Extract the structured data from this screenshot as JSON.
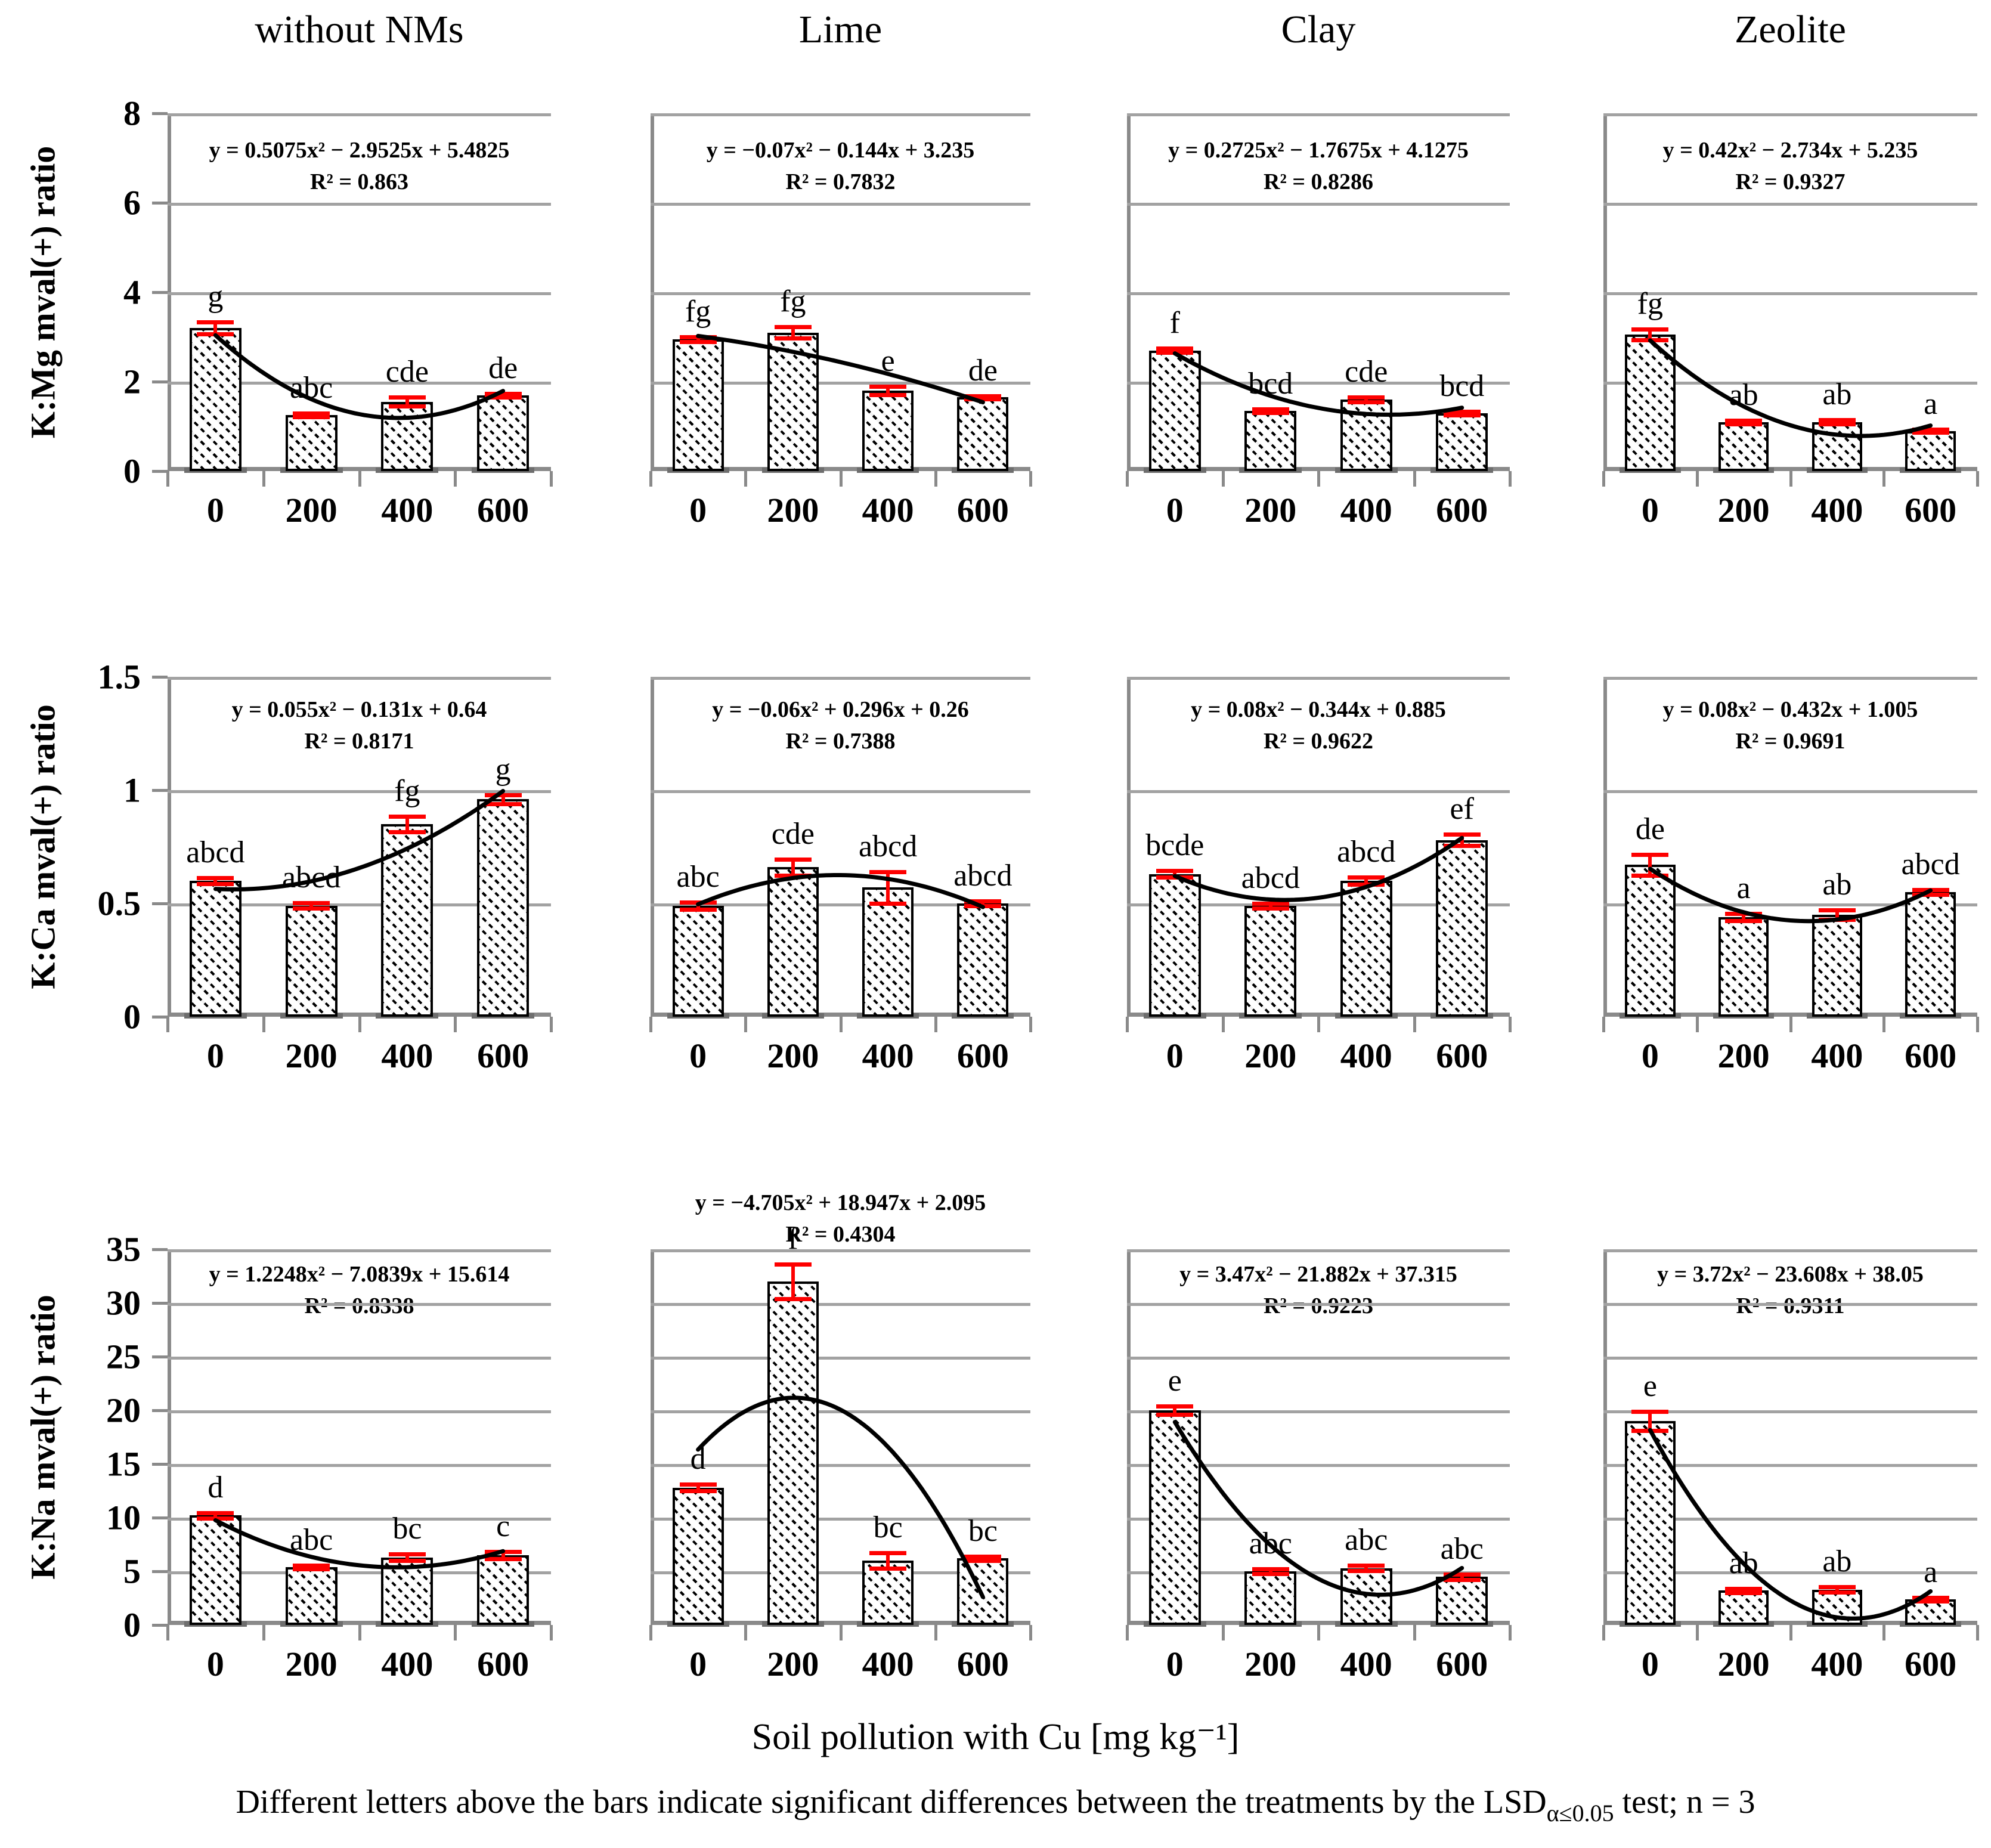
{
  "figure": {
    "column_titles": [
      "without NMs",
      "Lime",
      "Clay",
      "Zeolite"
    ],
    "x_categories": [
      "0",
      "200",
      "400",
      "600"
    ],
    "x_axis_title": "Soil pollution with Cu [mg kg⁻¹]",
    "caption": {
      "pre": "Different letters above the bars indicate significant differences between the treatments by the LSD",
      "sub": "α≤0.05",
      "post": " test; n = 3"
    },
    "rows": [
      {
        "ylabel": "K:Mg mval(+) ratio",
        "ymax": 8,
        "yticks": [
          "8",
          "6",
          "4",
          "2",
          "0"
        ]
      },
      {
        "ylabel": "K:Ca mval(+) ratio",
        "ymax": 1.5,
        "yticks": [
          "1.5",
          "1",
          "0.5",
          "0"
        ]
      },
      {
        "ylabel": "K:Na mval(+) ratio",
        "ymax": 35,
        "yticks": [
          "35",
          "30",
          "25",
          "20",
          "15",
          "10",
          "5",
          "0"
        ]
      }
    ],
    "colors": {
      "error_bar": "#fe0000",
      "gridline": "#a2a2a2",
      "axis": "#8a8a8a",
      "bar_border": "#000000",
      "trend_curve": "#000000"
    }
  },
  "chart_data": {
    "type": "bar",
    "x_categories": [
      "0",
      "200",
      "400",
      "600"
    ],
    "panels": [
      {
        "row": 0,
        "col": 0,
        "treatment": "without NMs",
        "equation": "y = 0.5075x² − 2.9525x + 5.4825",
        "r2": "R² = 0.863",
        "poly": [
          0.5075,
          -2.9525,
          5.4825
        ],
        "values": [
          3.2,
          1.25,
          1.55,
          1.7
        ],
        "errors": [
          0.13,
          0.04,
          0.1,
          0.04
        ],
        "letters": [
          "g",
          "abc",
          "cde",
          "de"
        ]
      },
      {
        "row": 0,
        "col": 1,
        "treatment": "Lime",
        "equation": "y = −0.07x² − 0.144x + 3.235",
        "r2": "R² = 0.7832",
        "poly": [
          -0.07,
          -0.144,
          3.235
        ],
        "values": [
          2.95,
          3.1,
          1.8,
          1.65
        ],
        "errors": [
          0.05,
          0.13,
          0.09,
          0.03
        ],
        "letters": [
          "fg",
          "fg",
          "e",
          "de"
        ]
      },
      {
        "row": 0,
        "col": 2,
        "treatment": "Clay",
        "equation": "y = 0.2725x² − 1.7675x + 4.1275",
        "r2": "R² = 0.8286",
        "poly": [
          0.2725,
          -1.7675,
          4.1275
        ],
        "values": [
          2.7,
          1.35,
          1.6,
          1.3
        ],
        "errors": [
          0.05,
          0.04,
          0.05,
          0.04
        ],
        "letters": [
          "f",
          "bcd",
          "cde",
          "bcd"
        ]
      },
      {
        "row": 0,
        "col": 3,
        "treatment": "Zeolite",
        "equation": "y = 0.42x² − 2.734x + 5.235",
        "r2": "R² = 0.9327",
        "poly": [
          0.42,
          -2.734,
          5.235
        ],
        "values": [
          3.05,
          1.1,
          1.1,
          0.9
        ],
        "errors": [
          0.12,
          0.04,
          0.05,
          0.03
        ],
        "letters": [
          "fg",
          "ab",
          "ab",
          "a"
        ]
      },
      {
        "row": 1,
        "col": 0,
        "treatment": "without NMs",
        "equation": "y = 0.055x² − 0.131x + 0.64",
        "r2": "R² = 0.8171",
        "poly": [
          0.055,
          -0.131,
          0.64
        ],
        "values": [
          0.6,
          0.49,
          0.85,
          0.96
        ],
        "errors": [
          0.012,
          0.012,
          0.035,
          0.02
        ],
        "letters": [
          "abcd",
          "abcd",
          "fg",
          "g"
        ]
      },
      {
        "row": 1,
        "col": 1,
        "treatment": "Lime",
        "equation": "y = −0.06x² + 0.296x + 0.26",
        "r2": "R² = 0.7388",
        "poly": [
          -0.06,
          0.296,
          0.26
        ],
        "values": [
          0.49,
          0.66,
          0.57,
          0.5
        ],
        "errors": [
          0.015,
          0.035,
          0.07,
          0.01
        ],
        "letters": [
          "abc",
          "cde",
          "abcd",
          "abcd"
        ]
      },
      {
        "row": 1,
        "col": 2,
        "treatment": "Clay",
        "equation": "y = 0.08x² − 0.344x + 0.885",
        "r2": "R² = 0.9622",
        "poly": [
          0.08,
          -0.344,
          0.885
        ],
        "values": [
          0.63,
          0.49,
          0.6,
          0.78
        ],
        "errors": [
          0.015,
          0.01,
          0.015,
          0.025
        ],
        "letters": [
          "bcde",
          "abcd",
          "abcd",
          "ef"
        ]
      },
      {
        "row": 1,
        "col": 3,
        "treatment": "Zeolite",
        "equation": "y = 0.08x² − 0.432x + 1.005",
        "r2": "R² = 0.9691",
        "poly": [
          0.08,
          -0.432,
          1.005
        ],
        "values": [
          0.67,
          0.44,
          0.45,
          0.55
        ],
        "errors": [
          0.045,
          0.015,
          0.02,
          0.01
        ],
        "letters": [
          "de",
          "a",
          "ab",
          "abcd"
        ]
      },
      {
        "row": 2,
        "col": 0,
        "treatment": "without NMs",
        "equation": "y = 1.2248x² − 7.0839x + 15.614",
        "r2": "R² = 0.8338",
        "poly": [
          1.2248,
          -7.0839,
          15.614
        ],
        "values": [
          10.2,
          5.4,
          6.3,
          6.5
        ],
        "errors": [
          0.25,
          0.15,
          0.3,
          0.35
        ],
        "letters": [
          "d",
          "abc",
          "bc",
          "c"
        ]
      },
      {
        "row": 2,
        "col": 1,
        "treatment": "Lime",
        "equation": "y = −4.705x² + 18.947x + 2.095",
        "r2": "R² = 0.4304",
        "poly": [
          -4.705,
          18.947,
          2.095
        ],
        "values": [
          12.8,
          32.0,
          6.0,
          6.2
        ],
        "errors": [
          0.3,
          1.6,
          0.7,
          0.2
        ],
        "letters": [
          "d",
          "f",
          "bc",
          "bc"
        ],
        "eq_above": true
      },
      {
        "row": 2,
        "col": 2,
        "treatment": "Clay",
        "equation": "y = 3.47x² − 21.882x + 37.315",
        "r2": "R² = 0.9223",
        "poly": [
          3.47,
          -21.882,
          37.315
        ],
        "values": [
          20.0,
          5.0,
          5.3,
          4.5
        ],
        "errors": [
          0.4,
          0.2,
          0.25,
          0.25
        ],
        "letters": [
          "e",
          "abc",
          "abc",
          "abc"
        ]
      },
      {
        "row": 2,
        "col": 3,
        "treatment": "Zeolite",
        "equation": "y = 3.72x² − 23.608x + 38.05",
        "r2": "R² = 0.9311",
        "poly": [
          3.72,
          -23.608,
          38.05
        ],
        "values": [
          19.0,
          3.2,
          3.3,
          2.4
        ],
        "errors": [
          0.9,
          0.2,
          0.25,
          0.15
        ],
        "letters": [
          "e",
          "ab",
          "ab",
          "a"
        ]
      }
    ]
  }
}
